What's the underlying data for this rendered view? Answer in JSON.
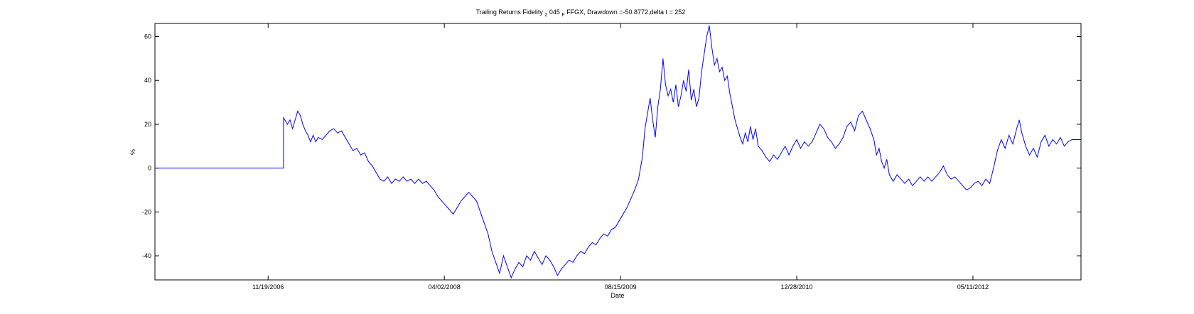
{
  "chart_data": {
    "type": "line",
    "title_parts": {
      "prefix": "Trailing Returns Fidelity ",
      "subscript": "2",
      "middle": "045",
      "subscript2": "F",
      "suffix": "FFGX, Drawdown =-50.8772,delta t = 252"
    },
    "xlabel": "Date",
    "ylabel": "%",
    "x_range_years": [
      2006.0,
      2013.2
    ],
    "ylim": [
      -51,
      66
    ],
    "yticks": [
      -40,
      -20,
      0,
      20,
      40,
      60
    ],
    "xticks": [
      {
        "label": "11/19/2006",
        "year": 2006.88
      },
      {
        "label": "04/02/2008",
        "year": 2008.25
      },
      {
        "label": "08/15/2009",
        "year": 2009.62
      },
      {
        "label": "12/28/2010",
        "year": 2010.99
      },
      {
        "label": "05/11/2012",
        "year": 2012.36
      }
    ],
    "grid": false,
    "line_color": "#0000ff",
    "series": [
      {
        "points": [
          [
            2006.0,
            0
          ],
          [
            2007.0,
            0
          ],
          [
            2007.0,
            0
          ],
          [
            2007.0,
            23
          ],
          [
            2007.03,
            20
          ],
          [
            2007.05,
            22
          ],
          [
            2007.07,
            18
          ],
          [
            2007.09,
            22
          ],
          [
            2007.11,
            26
          ],
          [
            2007.13,
            24
          ],
          [
            2007.15,
            20
          ],
          [
            2007.17,
            17
          ],
          [
            2007.19,
            15
          ],
          [
            2007.21,
            12
          ],
          [
            2007.23,
            15
          ],
          [
            2007.25,
            12
          ],
          [
            2007.27,
            14
          ],
          [
            2007.3,
            13
          ],
          [
            2007.33,
            15
          ],
          [
            2007.36,
            17
          ],
          [
            2007.39,
            18
          ],
          [
            2007.42,
            16
          ],
          [
            2007.45,
            17
          ],
          [
            2007.48,
            14
          ],
          [
            2007.51,
            11
          ],
          [
            2007.54,
            8
          ],
          [
            2007.57,
            9
          ],
          [
            2007.6,
            6
          ],
          [
            2007.63,
            7
          ],
          [
            2007.66,
            3
          ],
          [
            2007.69,
            1
          ],
          [
            2007.72,
            -2
          ],
          [
            2007.75,
            -5
          ],
          [
            2007.78,
            -6
          ],
          [
            2007.81,
            -4
          ],
          [
            2007.84,
            -7
          ],
          [
            2007.87,
            -5
          ],
          [
            2007.9,
            -6
          ],
          [
            2007.93,
            -4
          ],
          [
            2007.96,
            -6
          ],
          [
            2007.99,
            -5
          ],
          [
            2008.02,
            -7
          ],
          [
            2008.05,
            -5
          ],
          [
            2008.08,
            -7
          ],
          [
            2008.11,
            -6
          ],
          [
            2008.14,
            -8
          ],
          [
            2008.17,
            -10
          ],
          [
            2008.2,
            -13
          ],
          [
            2008.23,
            -15
          ],
          [
            2008.26,
            -17
          ],
          [
            2008.29,
            -19
          ],
          [
            2008.32,
            -21
          ],
          [
            2008.35,
            -18
          ],
          [
            2008.38,
            -15
          ],
          [
            2008.41,
            -13
          ],
          [
            2008.44,
            -11
          ],
          [
            2008.47,
            -13
          ],
          [
            2008.5,
            -15
          ],
          [
            2008.53,
            -20
          ],
          [
            2008.56,
            -25
          ],
          [
            2008.59,
            -30
          ],
          [
            2008.62,
            -38
          ],
          [
            2008.65,
            -43
          ],
          [
            2008.68,
            -48
          ],
          [
            2008.71,
            -40
          ],
          [
            2008.74,
            -45
          ],
          [
            2008.77,
            -50
          ],
          [
            2008.8,
            -46
          ],
          [
            2008.83,
            -43
          ],
          [
            2008.86,
            -45
          ],
          [
            2008.89,
            -40
          ],
          [
            2008.92,
            -42
          ],
          [
            2008.95,
            -38
          ],
          [
            2008.98,
            -41
          ],
          [
            2009.01,
            -44
          ],
          [
            2009.04,
            -40
          ],
          [
            2009.07,
            -42
          ],
          [
            2009.1,
            -45
          ],
          [
            2009.13,
            -49
          ],
          [
            2009.16,
            -46
          ],
          [
            2009.19,
            -44
          ],
          [
            2009.22,
            -42
          ],
          [
            2009.25,
            -43
          ],
          [
            2009.28,
            -40
          ],
          [
            2009.31,
            -38
          ],
          [
            2009.34,
            -39
          ],
          [
            2009.37,
            -36
          ],
          [
            2009.4,
            -34
          ],
          [
            2009.43,
            -35
          ],
          [
            2009.46,
            -32
          ],
          [
            2009.49,
            -30
          ],
          [
            2009.52,
            -31
          ],
          [
            2009.55,
            -28
          ],
          [
            2009.58,
            -27
          ],
          [
            2009.61,
            -24
          ],
          [
            2009.64,
            -21
          ],
          [
            2009.67,
            -18
          ],
          [
            2009.7,
            -14
          ],
          [
            2009.73,
            -10
          ],
          [
            2009.76,
            -5
          ],
          [
            2009.79,
            5
          ],
          [
            2009.81,
            18
          ],
          [
            2009.83,
            25
          ],
          [
            2009.85,
            32
          ],
          [
            2009.87,
            22
          ],
          [
            2009.89,
            14
          ],
          [
            2009.91,
            28
          ],
          [
            2009.93,
            36
          ],
          [
            2009.95,
            50
          ],
          [
            2009.97,
            38
          ],
          [
            2009.99,
            33
          ],
          [
            2010.01,
            36
          ],
          [
            2010.03,
            30
          ],
          [
            2010.05,
            38
          ],
          [
            2010.07,
            28
          ],
          [
            2010.09,
            33
          ],
          [
            2010.11,
            40
          ],
          [
            2010.13,
            35
          ],
          [
            2010.15,
            45
          ],
          [
            2010.17,
            31
          ],
          [
            2010.19,
            36
          ],
          [
            2010.21,
            28
          ],
          [
            2010.23,
            32
          ],
          [
            2010.25,
            44
          ],
          [
            2010.27,
            52
          ],
          [
            2010.29,
            60
          ],
          [
            2010.31,
            65
          ],
          [
            2010.33,
            55
          ],
          [
            2010.35,
            47
          ],
          [
            2010.37,
            50
          ],
          [
            2010.39,
            44
          ],
          [
            2010.41,
            46
          ],
          [
            2010.43,
            40
          ],
          [
            2010.45,
            42
          ],
          [
            2010.47,
            34
          ],
          [
            2010.49,
            28
          ],
          [
            2010.51,
            22
          ],
          [
            2010.53,
            18
          ],
          [
            2010.55,
            14
          ],
          [
            2010.57,
            11
          ],
          [
            2010.59,
            16
          ],
          [
            2010.61,
            12
          ],
          [
            2010.63,
            19
          ],
          [
            2010.65,
            13
          ],
          [
            2010.67,
            18
          ],
          [
            2010.69,
            10
          ],
          [
            2010.72,
            8
          ],
          [
            2010.75,
            5
          ],
          [
            2010.78,
            3
          ],
          [
            2010.81,
            6
          ],
          [
            2010.84,
            4
          ],
          [
            2010.87,
            7
          ],
          [
            2010.9,
            10
          ],
          [
            2010.93,
            6
          ],
          [
            2010.96,
            10
          ],
          [
            2010.99,
            13
          ],
          [
            2011.02,
            9
          ],
          [
            2011.05,
            12
          ],
          [
            2011.08,
            10
          ],
          [
            2011.11,
            12
          ],
          [
            2011.14,
            16
          ],
          [
            2011.17,
            20
          ],
          [
            2011.2,
            18
          ],
          [
            2011.23,
            14
          ],
          [
            2011.26,
            12
          ],
          [
            2011.29,
            9
          ],
          [
            2011.32,
            11
          ],
          [
            2011.35,
            14
          ],
          [
            2011.38,
            19
          ],
          [
            2011.41,
            21
          ],
          [
            2011.44,
            17
          ],
          [
            2011.47,
            24
          ],
          [
            2011.5,
            26
          ],
          [
            2011.53,
            22
          ],
          [
            2011.56,
            18
          ],
          [
            2011.59,
            13
          ],
          [
            2011.61,
            6
          ],
          [
            2011.63,
            9
          ],
          [
            2011.65,
            3
          ],
          [
            2011.67,
            0
          ],
          [
            2011.69,
            4
          ],
          [
            2011.71,
            -3
          ],
          [
            2011.74,
            -6
          ],
          [
            2011.77,
            -3
          ],
          [
            2011.8,
            -5
          ],
          [
            2011.83,
            -7
          ],
          [
            2011.86,
            -5
          ],
          [
            2011.89,
            -8
          ],
          [
            2011.92,
            -6
          ],
          [
            2011.95,
            -4
          ],
          [
            2011.98,
            -6
          ],
          [
            2012.01,
            -4
          ],
          [
            2012.04,
            -6
          ],
          [
            2012.07,
            -4
          ],
          [
            2012.1,
            -2
          ],
          [
            2012.13,
            1
          ],
          [
            2012.16,
            -3
          ],
          [
            2012.19,
            -5
          ],
          [
            2012.22,
            -4
          ],
          [
            2012.25,
            -6
          ],
          [
            2012.28,
            -8
          ],
          [
            2012.31,
            -10
          ],
          [
            2012.34,
            -9
          ],
          [
            2012.37,
            -7
          ],
          [
            2012.4,
            -6
          ],
          [
            2012.43,
            -8
          ],
          [
            2012.46,
            -5
          ],
          [
            2012.49,
            -7
          ],
          [
            2012.52,
            0
          ],
          [
            2012.55,
            8
          ],
          [
            2012.58,
            13
          ],
          [
            2012.61,
            9
          ],
          [
            2012.64,
            15
          ],
          [
            2012.67,
            11
          ],
          [
            2012.7,
            18
          ],
          [
            2012.72,
            22
          ],
          [
            2012.74,
            16
          ],
          [
            2012.77,
            10
          ],
          [
            2012.8,
            6
          ],
          [
            2012.83,
            9
          ],
          [
            2012.86,
            5
          ],
          [
            2012.89,
            12
          ],
          [
            2012.92,
            15
          ],
          [
            2012.95,
            10
          ],
          [
            2012.98,
            13
          ],
          [
            2013.01,
            11
          ],
          [
            2013.04,
            14
          ],
          [
            2013.07,
            10
          ],
          [
            2013.1,
            12
          ],
          [
            2013.13,
            13
          ],
          [
            2013.17,
            13
          ],
          [
            2013.2,
            13
          ]
        ]
      }
    ]
  }
}
